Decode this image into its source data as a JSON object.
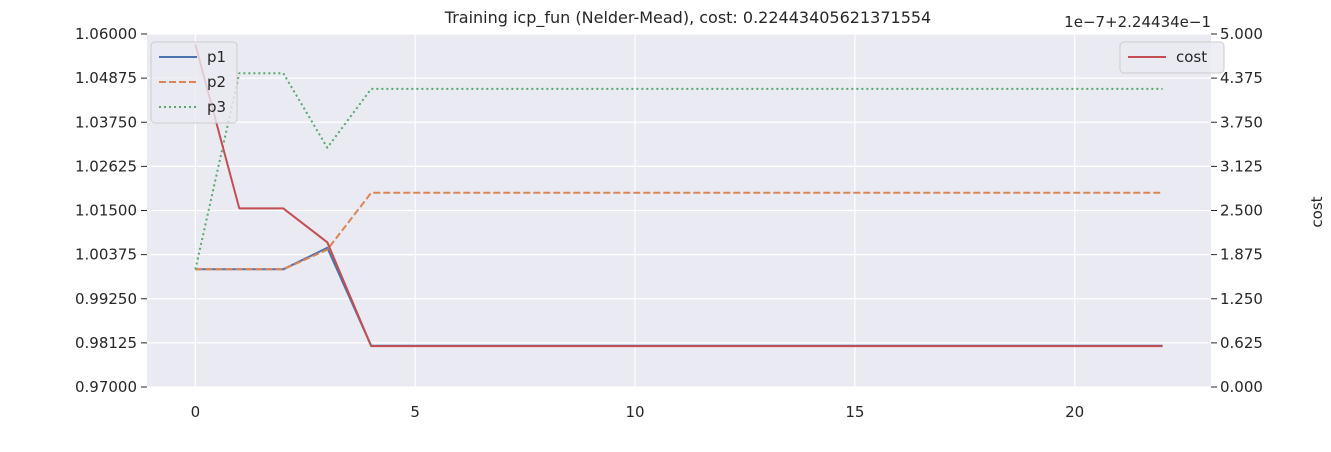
{
  "chart_data": {
    "type": "line",
    "title": "Training icp_fun (Nelder-Mead), cost: 0.22443405621371554",
    "x": [
      0,
      1,
      2,
      3,
      4,
      5,
      6,
      7,
      8,
      9,
      10,
      11,
      12,
      13,
      14,
      15,
      16,
      17,
      18,
      19,
      20,
      21,
      22
    ],
    "xticks": [
      0,
      5,
      10,
      15,
      20
    ],
    "xlim": [
      -1.1,
      23.1
    ],
    "left_axis": {
      "ylim": [
        0.97,
        1.06
      ],
      "ticks": [
        "0.97000",
        "0.98125",
        "0.99250",
        "1.00375",
        "1.01500",
        "1.02625",
        "1.03750",
        "1.04875",
        "1.06000"
      ]
    },
    "right_axis": {
      "label": "cost",
      "offset_text": "1e−7+2.24434e−1",
      "ylim": [
        0,
        5
      ],
      "ticks": [
        "0.000",
        "0.625",
        "1.250",
        "1.875",
        "2.500",
        "3.125",
        "3.750",
        "4.375",
        "5.000"
      ]
    },
    "series": [
      {
        "name": "p1",
        "axis": "left",
        "color": "#4c72b0",
        "dash": "solid",
        "values": [
          1.0,
          1.0,
          1.0,
          1.0055,
          0.9805,
          0.9805,
          0.9805,
          0.9805,
          0.9805,
          0.9805,
          0.9805,
          0.9805,
          0.9805,
          0.9805,
          0.9805,
          0.9805,
          0.9805,
          0.9805,
          0.9805,
          0.9805,
          0.9805,
          0.9805,
          0.9805
        ]
      },
      {
        "name": "p2",
        "axis": "left",
        "color": "#dd8452",
        "dash": "dashed",
        "values": [
          1.0,
          1.0,
          1.0,
          1.005,
          1.0195,
          1.0195,
          1.0195,
          1.0195,
          1.0195,
          1.0195,
          1.0195,
          1.0195,
          1.0195,
          1.0195,
          1.0195,
          1.0195,
          1.0195,
          1.0195,
          1.0195,
          1.0195,
          1.0195,
          1.0195,
          1.0195
        ]
      },
      {
        "name": "p3",
        "axis": "left",
        "color": "#55a868",
        "dash": "dotted",
        "values": [
          1.0,
          1.05,
          1.05,
          1.031,
          1.046,
          1.046,
          1.046,
          1.046,
          1.046,
          1.046,
          1.046,
          1.046,
          1.046,
          1.046,
          1.046,
          1.046,
          1.046,
          1.046,
          1.046,
          1.046,
          1.046,
          1.046,
          1.046
        ]
      },
      {
        "name": "cost",
        "axis": "right",
        "color": "#c44e52",
        "dash": "solid",
        "values": [
          4.85,
          2.53,
          2.53,
          2.05,
          0.58,
          0.58,
          0.58,
          0.58,
          0.58,
          0.58,
          0.58,
          0.58,
          0.58,
          0.58,
          0.58,
          0.58,
          0.58,
          0.58,
          0.58,
          0.58,
          0.58,
          0.58,
          0.58
        ]
      }
    ],
    "legends": [
      {
        "placement": "upper-left",
        "entries": [
          "p1",
          "p2",
          "p3"
        ]
      },
      {
        "placement": "upper-right",
        "entries": [
          "cost"
        ]
      }
    ],
    "grid": true,
    "colors": {
      "plot_background": "#eaeaf2",
      "grid": "#ffffff"
    }
  }
}
